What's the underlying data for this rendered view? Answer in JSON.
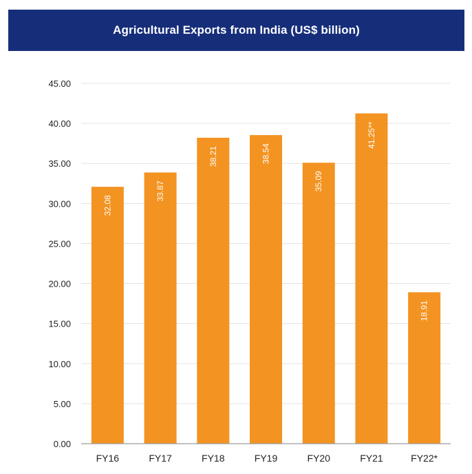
{
  "chart_data": {
    "type": "bar",
    "title": "Agricultural Exports from India (US$ billion)",
    "xlabel": "",
    "ylabel": "",
    "categories": [
      "FY16",
      "FY17",
      "FY18",
      "FY19",
      "FY20",
      "FY21",
      "FY22*"
    ],
    "values": [
      32.08,
      33.87,
      38.21,
      38.54,
      35.09,
      41.25,
      18.91
    ],
    "data_labels": [
      "32.08",
      "33.87",
      "38.21",
      "38.54",
      "35.09",
      "41.25**",
      "18.91"
    ],
    "ylim": [
      0,
      45
    ],
    "yticks": [
      "0.00",
      "5.00",
      "10.00",
      "15.00",
      "20.00",
      "25.00",
      "30.00",
      "35.00",
      "40.00",
      "45.00"
    ],
    "grid": true,
    "legend": "none",
    "colors": {
      "bar": "#f39321",
      "title_bg": "#162e7a",
      "grid": "#e3e3e3",
      "axis": "#9a9a9a"
    }
  }
}
